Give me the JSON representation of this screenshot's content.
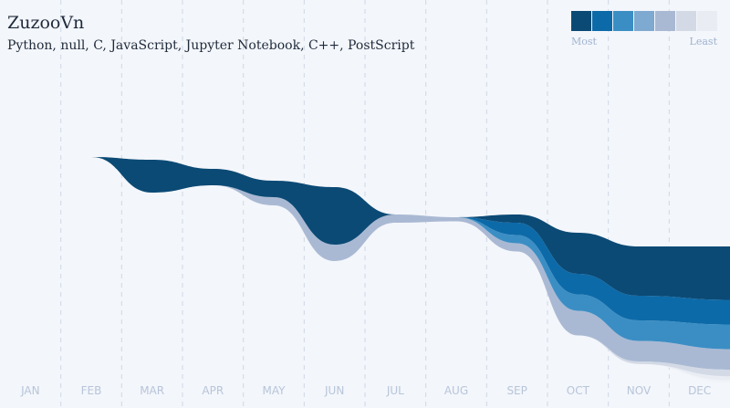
{
  "header": {
    "title": "ZuzooVn",
    "subtitle": "Python, null, C, JavaScript, Jupyter Notebook, C++, PostScript"
  },
  "legend": {
    "most_label": "Most",
    "least_label": "Least",
    "colors": [
      "#0b4a75",
      "#0d6aa8",
      "#3b8ec4",
      "#7ea9d0",
      "#aab9d3",
      "#d3dae6",
      "#e9edf3"
    ]
  },
  "colors": {
    "background": "#f3f6fb",
    "gridline": "#cfd8e4",
    "month_label": "#b8c5d9"
  },
  "chart_data": {
    "type": "area",
    "subtype": "streamgraph",
    "title": "",
    "x": [
      "JAN",
      "FEB",
      "MAR",
      "APR",
      "MAY",
      "JUN",
      "JUL",
      "AUG",
      "SEP",
      "OCT",
      "NOV",
      "DEC"
    ],
    "grid": true,
    "series": [
      {
        "name": "Python",
        "color": "#0b4a75",
        "values": [
          0,
          0,
          4,
          2,
          2,
          7,
          0,
          0,
          1,
          5,
          6,
          6.5
        ]
      },
      {
        "name": "null",
        "color": "#0d6aa8",
        "values": [
          0,
          0,
          0,
          0,
          0,
          0,
          0,
          0,
          1.5,
          2.5,
          3,
          3
        ]
      },
      {
        "name": "C",
        "color": "#3b8ec4",
        "values": [
          0,
          0,
          0,
          0,
          0,
          0,
          0,
          0,
          1,
          2,
          2.5,
          3
        ]
      },
      {
        "name": "JavaScript",
        "color": "#aab9d3",
        "values": [
          0,
          0,
          0,
          0,
          1,
          2,
          1,
          0.5,
          1,
          3,
          2.5,
          2.5
        ]
      },
      {
        "name": "Jupyter Notebook",
        "color": "#d3dae6",
        "values": [
          0,
          0,
          0,
          0,
          0,
          0,
          0,
          0,
          0,
          0,
          0.3,
          0.8
        ]
      },
      {
        "name": "C++",
        "color": "#e9edf3",
        "values": [
          0,
          0,
          0,
          0,
          0,
          0,
          0,
          0,
          0,
          0,
          0,
          0.5
        ]
      },
      {
        "name": "PostScript",
        "color": "#f0f3f8",
        "values": [
          0,
          0,
          0,
          0,
          0,
          0,
          0,
          0,
          0,
          0,
          0,
          0.3
        ]
      }
    ]
  }
}
